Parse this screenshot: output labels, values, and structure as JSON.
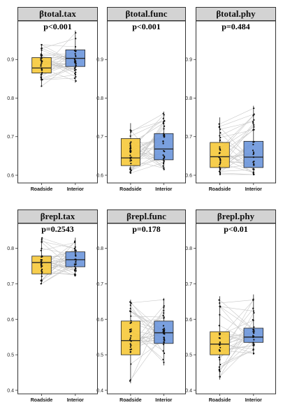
{
  "colors": {
    "roadside": "#f6c93a",
    "interior": "#6b96dc",
    "strip": "#d3d3d3",
    "pairline": "#c8c8c8"
  },
  "chart_data": [
    {
      "type": "box",
      "title": "βtotal.tax",
      "annotation": "p<0.001",
      "ylim": [
        0.58,
        1.0
      ],
      "yticks": [
        0.6,
        0.7,
        0.8,
        0.9
      ],
      "categories": [
        "Roadside",
        "Interior"
      ],
      "series": [
        {
          "name": "Roadside",
          "min": 0.83,
          "q1": 0.865,
          "median": 0.878,
          "q3": 0.905,
          "max": 0.94
        },
        {
          "name": "Interior",
          "min": 0.84,
          "q1": 0.882,
          "median": 0.903,
          "q3": 0.925,
          "max": 0.975
        }
      ]
    },
    {
      "type": "box",
      "title": "βtotal.func",
      "annotation": "p<0.001",
      "ylim": [
        0.58,
        1.0
      ],
      "yticks": [
        0.6,
        0.7,
        0.8,
        0.9
      ],
      "categories": [
        "Roadside",
        "Interior"
      ],
      "series": [
        {
          "name": "Roadside",
          "min": 0.605,
          "q1": 0.625,
          "median": 0.645,
          "q3": 0.695,
          "max": 0.735
        },
        {
          "name": "Interior",
          "min": 0.615,
          "q1": 0.64,
          "median": 0.668,
          "q3": 0.708,
          "max": 0.765
        }
      ]
    },
    {
      "type": "box",
      "title": "βtotal.phy",
      "annotation": "p=0.484",
      "ylim": [
        0.58,
        1.0
      ],
      "yticks": [
        0.6,
        0.7,
        0.8,
        0.9
      ],
      "categories": [
        "Roadside",
        "Interior"
      ],
      "series": [
        {
          "name": "Roadside",
          "min": 0.6,
          "q1": 0.62,
          "median": 0.648,
          "q3": 0.685,
          "max": 0.75
        },
        {
          "name": "Interior",
          "min": 0.6,
          "q1": 0.62,
          "median": 0.647,
          "q3": 0.688,
          "max": 0.78
        }
      ]
    },
    {
      "type": "box",
      "title": "βrepl.tax",
      "annotation": "p=0.2543",
      "ylim": [
        0.39,
        0.87
      ],
      "yticks": [
        0.4,
        0.5,
        0.6,
        0.7,
        0.8
      ],
      "categories": [
        "Roadside",
        "Interior"
      ],
      "series": [
        {
          "name": "Roadside",
          "min": 0.7,
          "q1": 0.728,
          "median": 0.76,
          "q3": 0.778,
          "max": 0.83
        },
        {
          "name": "Interior",
          "min": 0.72,
          "q1": 0.748,
          "median": 0.768,
          "q3": 0.79,
          "max": 0.83
        }
      ]
    },
    {
      "type": "box",
      "title": "βrepl.func",
      "annotation": "p=0.178",
      "ylim": [
        0.39,
        0.87
      ],
      "yticks": [
        0.4,
        0.5,
        0.6,
        0.7,
        0.8
      ],
      "categories": [
        "Roadside",
        "Interior"
      ],
      "series": [
        {
          "name": "Roadside",
          "min": 0.42,
          "q1": 0.5,
          "median": 0.54,
          "q3": 0.595,
          "max": 0.655
        },
        {
          "name": "Interior",
          "min": 0.47,
          "q1": 0.532,
          "median": 0.562,
          "q3": 0.595,
          "max": 0.66
        }
      ]
    },
    {
      "type": "box",
      "title": "βrepl.phy",
      "annotation": "p<0.01",
      "ylim": [
        0.39,
        0.87
      ],
      "yticks": [
        0.4,
        0.5,
        0.6,
        0.7,
        0.8
      ],
      "categories": [
        "Roadside",
        "Interior"
      ],
      "series": [
        {
          "name": "Roadside",
          "min": 0.43,
          "q1": 0.5,
          "median": 0.53,
          "q3": 0.565,
          "max": 0.665
        },
        {
          "name": "Interior",
          "min": 0.5,
          "q1": 0.535,
          "median": 0.55,
          "q3": 0.575,
          "max": 0.67
        }
      ]
    }
  ]
}
